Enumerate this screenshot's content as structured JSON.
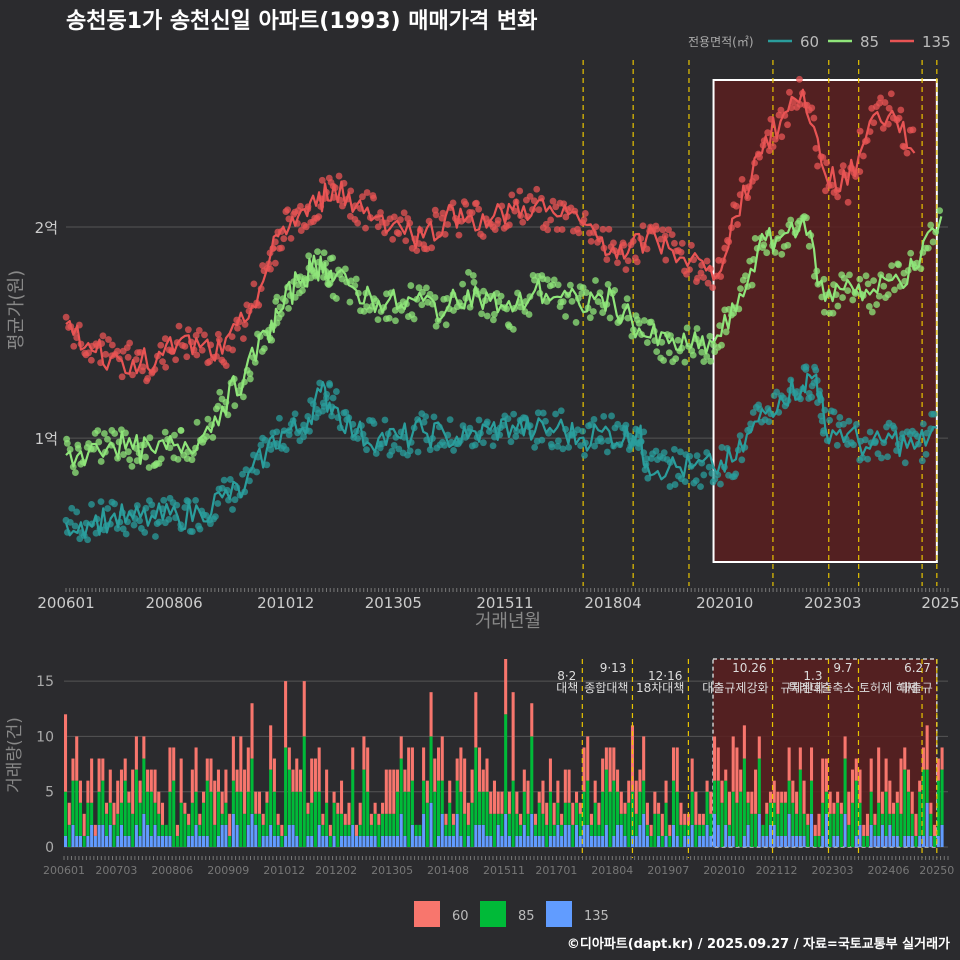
{
  "title": "송천동1가 송천신일 아파트(1993) 매매가격 변화",
  "footer": "©디아파트(dapt.kr) / 2025.09.27 / 자료=국토교통부 실거래가",
  "colors": {
    "s60": "#2a9d9c",
    "s85": "#8fe57a",
    "s135": "#e85454",
    "bar60": "#f8766d",
    "bar85": "#00ba38",
    "bar135": "#619cff",
    "policy": "#e8c400",
    "highlight": "#5a1e1e"
  },
  "chart_data": [
    {
      "type": "line",
      "title": "송천동1가 송천신일 아파트(1993) 매매가격 변화",
      "xlabel": "거래년월",
      "ylabel": "평균가(원)",
      "legend_title": "전용면적(㎡)",
      "xlim": [
        2006.0,
        2025.75
      ],
      "ylim": [
        3000,
        28000
      ],
      "y_unit": "만원",
      "x_ticks": [
        {
          "x": 2006.0,
          "label": "200601"
        },
        {
          "x": 2008.42,
          "label": "200806"
        },
        {
          "x": 2010.92,
          "label": "201012"
        },
        {
          "x": 2013.33,
          "label": "201305"
        },
        {
          "x": 2015.83,
          "label": "201511"
        },
        {
          "x": 2018.25,
          "label": "201804"
        },
        {
          "x": 2020.75,
          "label": "202010"
        },
        {
          "x": 2023.17,
          "label": "202303"
        },
        {
          "x": 2025.58,
          "label": "2025"
        }
      ],
      "y_ticks": [
        {
          "y": 10000,
          "label": "1억"
        },
        {
          "y": 20000,
          "label": "2억"
        }
      ],
      "highlight": {
        "x_start": 2020.5,
        "x_end": 2025.5
      },
      "policy_lines": [
        2017.58,
        2018.7,
        2019.95,
        2021.83,
        2023.08,
        2023.75,
        2025.17,
        2025.5
      ],
      "series": [
        {
          "name": "60",
          "key": "s60",
          "points": [
            [
              2006.0,
              6000
            ],
            [
              2006.5,
              6000
            ],
            [
              2007.0,
              6200
            ],
            [
              2007.5,
              6200
            ],
            [
              2008.0,
              6200
            ],
            [
              2008.5,
              6300
            ],
            [
              2009.0,
              6500
            ],
            [
              2009.5,
              7200
            ],
            [
              2010.0,
              7600
            ],
            [
              2010.5,
              9500
            ],
            [
              2010.9,
              10300
            ],
            [
              2011.3,
              10500
            ],
            [
              2011.7,
              12200
            ],
            [
              2012.0,
              11500
            ],
            [
              2012.5,
              10200
            ],
            [
              2013.0,
              10000
            ],
            [
              2013.5,
              10000
            ],
            [
              2014.0,
              10300
            ],
            [
              2014.5,
              10100
            ],
            [
              2015.0,
              10000
            ],
            [
              2015.5,
              10400
            ],
            [
              2016.0,
              10600
            ],
            [
              2016.5,
              10300
            ],
            [
              2017.0,
              10500
            ],
            [
              2017.5,
              10000
            ],
            [
              2018.0,
              10300
            ],
            [
              2018.5,
              10000
            ],
            [
              2018.8,
              10500
            ],
            [
              2019.0,
              8800
            ],
            [
              2019.5,
              8600
            ],
            [
              2020.0,
              8600
            ],
            [
              2020.5,
              8600
            ],
            [
              2021.0,
              9000
            ],
            [
              2021.5,
              10800
            ],
            [
              2022.0,
              12000
            ],
            [
              2022.5,
              12500
            ],
            [
              2022.8,
              13000
            ],
            [
              2023.0,
              10500
            ],
            [
              2023.5,
              10200
            ],
            [
              2024.0,
              9500
            ],
            [
              2024.5,
              10000
            ],
            [
              2025.0,
              9500
            ],
            [
              2025.5,
              10500
            ]
          ]
        },
        {
          "name": "85",
          "key": "s85",
          "points": [
            [
              2006.0,
              9200
            ],
            [
              2006.5,
              9300
            ],
            [
              2007.0,
              9800
            ],
            [
              2007.5,
              9500
            ],
            [
              2008.0,
              9300
            ],
            [
              2008.5,
              9700
            ],
            [
              2009.0,
              10000
            ],
            [
              2009.5,
              11500
            ],
            [
              2010.0,
              13000
            ],
            [
              2010.5,
              15000
            ],
            [
              2010.8,
              16000
            ],
            [
              2011.2,
              17500
            ],
            [
              2011.5,
              18000
            ],
            [
              2011.8,
              18300
            ],
            [
              2012.0,
              17500
            ],
            [
              2012.5,
              17000
            ],
            [
              2013.0,
              16500
            ],
            [
              2013.5,
              16300
            ],
            [
              2014.0,
              16500
            ],
            [
              2014.5,
              16000
            ],
            [
              2015.0,
              17000
            ],
            [
              2015.5,
              16500
            ],
            [
              2016.0,
              16000
            ],
            [
              2016.5,
              17000
            ],
            [
              2017.0,
              16700
            ],
            [
              2017.5,
              16300
            ],
            [
              2018.0,
              16700
            ],
            [
              2018.5,
              16000
            ],
            [
              2019.0,
              14800
            ],
            [
              2019.5,
              14500
            ],
            [
              2020.0,
              14300
            ],
            [
              2020.5,
              14500
            ],
            [
              2021.0,
              16000
            ],
            [
              2021.5,
              19000
            ],
            [
              2022.0,
              19500
            ],
            [
              2022.5,
              20500
            ],
            [
              2023.0,
              16500
            ],
            [
              2023.5,
              17500
            ],
            [
              2024.0,
              16800
            ],
            [
              2024.5,
              17500
            ],
            [
              2025.0,
              18000
            ],
            [
              2025.6,
              20500
            ]
          ]
        },
        {
          "name": "135",
          "key": "s135",
          "points": [
            [
              2006.0,
              15400
            ],
            [
              2006.5,
              14500
            ],
            [
              2007.0,
              13800
            ],
            [
              2007.5,
              13700
            ],
            [
              2008.0,
              13500
            ],
            [
              2008.5,
              14500
            ],
            [
              2009.0,
              14300
            ],
            [
              2009.5,
              14000
            ],
            [
              2010.0,
              15500
            ],
            [
              2010.5,
              18000
            ],
            [
              2010.8,
              19800
            ],
            [
              2011.2,
              20500
            ],
            [
              2011.6,
              21000
            ],
            [
              2012.0,
              22000
            ],
            [
              2012.5,
              21000
            ],
            [
              2013.0,
              20500
            ],
            [
              2013.5,
              20000
            ],
            [
              2014.0,
              19500
            ],
            [
              2014.5,
              20500
            ],
            [
              2015.0,
              20500
            ],
            [
              2015.5,
              20300
            ],
            [
              2016.0,
              20800
            ],
            [
              2016.5,
              21000
            ],
            [
              2017.0,
              20500
            ],
            [
              2017.5,
              20300
            ],
            [
              2018.0,
              19500
            ],
            [
              2018.5,
              18500
            ],
            [
              2019.0,
              19500
            ],
            [
              2019.5,
              19000
            ],
            [
              2020.0,
              18500
            ],
            [
              2020.5,
              17500
            ],
            [
              2021.0,
              20500
            ],
            [
              2021.5,
              23500
            ],
            [
              2022.0,
              25000
            ],
            [
              2022.5,
              26500
            ],
            [
              2023.0,
              22500
            ],
            [
              2023.5,
              22000
            ],
            [
              2024.0,
              25000
            ],
            [
              2024.5,
              25500
            ],
            [
              2025.0,
              23500
            ]
          ]
        }
      ]
    },
    {
      "type": "bar",
      "ylabel": "거래량(건)",
      "xlim": [
        2006.0,
        2025.75
      ],
      "ylim": [
        0,
        17
      ],
      "x_ticks": [
        {
          "x": 2006.0,
          "label": "200601"
        },
        {
          "x": 2007.17,
          "label": "200703"
        },
        {
          "x": 2008.42,
          "label": "200806"
        },
        {
          "x": 2009.67,
          "label": "200909"
        },
        {
          "x": 2010.92,
          "label": "201012"
        },
        {
          "x": 2012.08,
          "label": "201202"
        },
        {
          "x": 2013.33,
          "label": "201305"
        },
        {
          "x": 2014.58,
          "label": "201408"
        },
        {
          "x": 2015.83,
          "label": "201511"
        },
        {
          "x": 2017.0,
          "label": "201701"
        },
        {
          "x": 2018.25,
          "label": "201804"
        },
        {
          "x": 2019.5,
          "label": "201907"
        },
        {
          "x": 2020.75,
          "label": "202010"
        },
        {
          "x": 2021.92,
          "label": "202112"
        },
        {
          "x": 2023.17,
          "label": "202303"
        },
        {
          "x": 2024.42,
          "label": "202406"
        },
        {
          "x": 2025.5,
          "label": "20250"
        }
      ],
      "y_ticks": [
        0,
        5,
        10,
        15
      ],
      "policy_labels": [
        {
          "x": 2017.58,
          "date": "8·2",
          "text": "대책"
        },
        {
          "x": 2018.7,
          "date": "9·13",
          "text": "종합대책"
        },
        {
          "x": 2019.95,
          "date": "12·16",
          "text": "18차대책"
        },
        {
          "x": 2021.83,
          "date": "10.26",
          "text": "대출규제강화"
        },
        {
          "x": 2023.08,
          "date": "1.3",
          "text": "규제완화"
        },
        {
          "x": 2023.75,
          "date": "9.7",
          "text": "특례대출축소"
        },
        {
          "x": 2025.17,
          "date": "",
          "text": "토허제 해제"
        },
        {
          "x": 2025.5,
          "date": "6.27",
          "text": "대출규"
        }
      ],
      "legend": [
        {
          "name": "60",
          "key": "bar60"
        },
        {
          "name": "85",
          "key": "bar85"
        },
        {
          "name": "135",
          "key": "bar135"
        }
      ]
    }
  ]
}
